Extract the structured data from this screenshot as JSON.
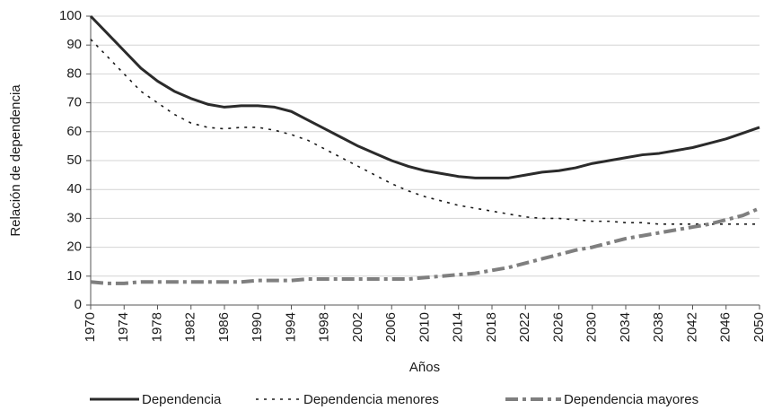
{
  "chart_data": {
    "type": "line",
    "x_label": "Años",
    "y_label": "Relación de dependencia",
    "x": [
      1970,
      1972,
      1974,
      1976,
      1978,
      1980,
      1982,
      1984,
      1986,
      1988,
      1990,
      1992,
      1994,
      1996,
      1998,
      2000,
      2002,
      2004,
      2006,
      2008,
      2010,
      2012,
      2014,
      2016,
      2018,
      2020,
      2022,
      2024,
      2026,
      2028,
      2030,
      2032,
      2034,
      2036,
      2038,
      2040,
      2042,
      2044,
      2046,
      2048,
      2050
    ],
    "series": [
      {
        "name": "Dependencia",
        "color": "#2b2b2b",
        "dash": "solid",
        "values": [
          100,
          94,
          88,
          82,
          77.5,
          74,
          71.5,
          69.5,
          68.5,
          69,
          69,
          68.5,
          67,
          64,
          61,
          58,
          55,
          52.5,
          50,
          48,
          46.5,
          45.5,
          44.5,
          44,
          44,
          44,
          45,
          46,
          46.5,
          47.5,
          49,
          50,
          51,
          52,
          52.5,
          53.5,
          54.5,
          56,
          57.5,
          59.5,
          61.5
        ]
      },
      {
        "name": "Dependencia menores",
        "color": "#1a1a1a",
        "dash": "dotted",
        "values": [
          92,
          86,
          80,
          74,
          70,
          66,
          63,
          61.5,
          61,
          61.5,
          61.5,
          60.5,
          59,
          57,
          54,
          51,
          48,
          45,
          42,
          39.5,
          37.5,
          36,
          34.5,
          33.5,
          32.5,
          31.5,
          30.5,
          30,
          30,
          29.5,
          29,
          29,
          28.5,
          28.5,
          28,
          28,
          28,
          28,
          28,
          28,
          28
        ]
      },
      {
        "name": "Dependencia mayores",
        "color": "#7f7f7f",
        "dash": "dashed",
        "values": [
          8,
          7.5,
          7.5,
          8,
          8,
          8,
          8,
          8,
          8,
          8,
          8.5,
          8.5,
          8.5,
          9,
          9,
          9,
          9,
          9,
          9,
          9,
          9.5,
          10,
          10.5,
          11,
          12,
          13,
          14.5,
          16,
          17.5,
          19,
          20,
          21.5,
          23,
          24,
          25,
          26,
          27,
          28,
          29.5,
          31,
          33.5
        ]
      }
    ],
    "xlim": [
      1970,
      2050
    ],
    "xticks": [
      1970,
      1974,
      1978,
      1982,
      1986,
      1990,
      1994,
      1998,
      2002,
      2006,
      2010,
      2014,
      2018,
      2022,
      2026,
      2030,
      2034,
      2038,
      2042,
      2046,
      2050
    ],
    "ylim": [
      0,
      100
    ],
    "yticks": [
      0,
      10,
      20,
      30,
      40,
      50,
      60,
      70,
      80,
      90,
      100
    ],
    "grid": true,
    "legend": "bottom"
  }
}
